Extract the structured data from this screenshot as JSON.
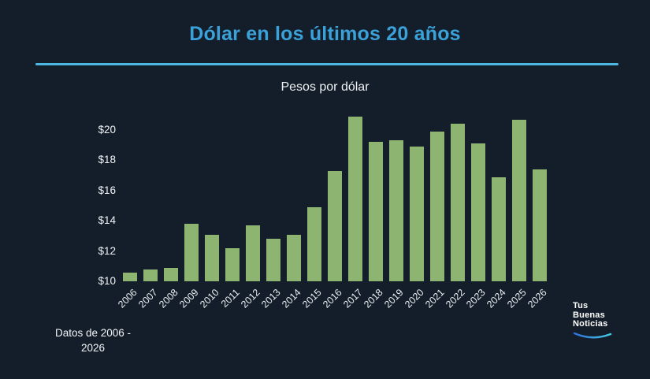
{
  "header": {
    "title": "Dólar en los últimos 20 años",
    "subtitle": "Pesos por dólar"
  },
  "chart_data": {
    "type": "bar",
    "title": "Dólar en los últimos 20 años",
    "subtitle": "Pesos por dólar",
    "categories": [
      "2006",
      "2007",
      "2008",
      "2009",
      "2010",
      "2011",
      "2012",
      "2013",
      "2014",
      "2015",
      "2016",
      "2017",
      "2018",
      "2019",
      "2020",
      "2021",
      "2022",
      "2023",
      "2024",
      "2025",
      "2026"
    ],
    "values": [
      10.6,
      10.8,
      10.9,
      13.8,
      13.1,
      12.2,
      13.7,
      12.8,
      13.1,
      14.9,
      17.3,
      20.9,
      19.2,
      19.3,
      18.9,
      19.9,
      20.4,
      19.1,
      16.9,
      20.7,
      17.4
    ],
    "xlabel": "",
    "ylabel": "Pesos por dólar",
    "ylim": [
      10,
      21
    ],
    "yticks": [
      {
        "label": "$10",
        "value": 10
      },
      {
        "label": "$12",
        "value": 12
      },
      {
        "label": "$14",
        "value": 14
      },
      {
        "label": "$16",
        "value": 16
      },
      {
        "label": "$18",
        "value": 18
      },
      {
        "label": "$20",
        "value": 20
      }
    ],
    "grid": false,
    "legend": false,
    "bar_color": "#8eb471"
  },
  "footer": {
    "caption_line1": "Datos de 2006 -",
    "caption_line2": "2026",
    "logo": {
      "line1": "Tus",
      "line2": "Buenas",
      "line3": "Noticias"
    }
  },
  "colors": {
    "background": "#141e2a",
    "title": "#3ba1d9",
    "divider": "#4db9e2",
    "bar": "#8eb471",
    "text": "#eef2f4",
    "logo_arc_start": "#2f6fd6",
    "logo_arc_end": "#45cbe8"
  }
}
